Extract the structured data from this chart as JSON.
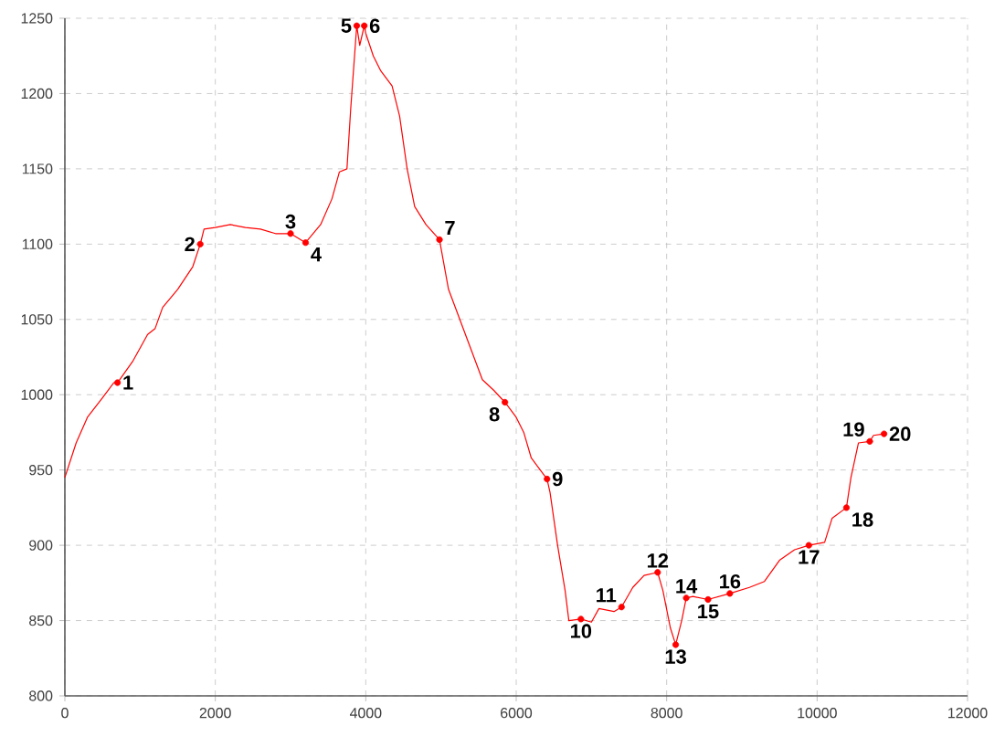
{
  "chart_data": {
    "type": "line",
    "xlim": [
      0,
      12000
    ],
    "ylim": [
      800,
      1250
    ],
    "xticks": [
      0,
      2000,
      4000,
      6000,
      8000,
      10000,
      12000
    ],
    "yticks": [
      800,
      850,
      900,
      950,
      1000,
      1050,
      1100,
      1150,
      1200,
      1250
    ],
    "grid": true,
    "series": [
      {
        "color": "#ff0000",
        "marker": "none",
        "line_style": "solid",
        "x": [
          0,
          150,
          300,
          500,
          650,
          700,
          900,
          1100,
          1200,
          1300,
          1500,
          1700,
          1800,
          1850,
          2000,
          2200,
          2400,
          2600,
          2800,
          3000,
          3200,
          3400,
          3550,
          3650,
          3750,
          3800,
          3880,
          3920,
          3980,
          4000,
          4100,
          4200,
          4350,
          4450,
          4550,
          4650,
          4800,
          4980,
          5100,
          5250,
          5400,
          5550,
          5700,
          5850,
          6000,
          6100,
          6200,
          6410,
          6450,
          6550,
          6650,
          6700,
          6860,
          7000,
          7100,
          7300,
          7400,
          7550,
          7700,
          7880,
          7950,
          8050,
          8120,
          8200,
          8260,
          8350,
          8550,
          8840,
          9100,
          9300,
          9500,
          9700,
          9890,
          10100,
          10200,
          10390,
          10450,
          10550,
          10700,
          10750,
          10890
        ],
        "values": [
          945,
          968,
          985,
          998,
          1008,
          1008,
          1022,
          1040,
          1044,
          1058,
          1070,
          1085,
          1100,
          1110,
          1111,
          1113,
          1111,
          1110,
          1107,
          1107,
          1101,
          1113,
          1130,
          1148,
          1150,
          1190,
          1245,
          1232,
          1245,
          1240,
          1225,
          1215,
          1205,
          1185,
          1150,
          1125,
          1113,
          1103,
          1070,
          1050,
          1030,
          1010,
          1003,
          995,
          985,
          975,
          958,
          944,
          935,
          900,
          870,
          850,
          851,
          849,
          858,
          856,
          859,
          872,
          880,
          882,
          870,
          845,
          834,
          850,
          865,
          866,
          864,
          868,
          872,
          876,
          890,
          897,
          900,
          902,
          918,
          925,
          945,
          968,
          969,
          973,
          974
        ]
      },
      {
        "type": "scatter",
        "color": "#ff0000",
        "marker": "circle",
        "x": [
          700,
          1800,
          3000,
          3200,
          3880,
          3980,
          4980,
          5850,
          6410,
          6860,
          7400,
          7880,
          8120,
          8260,
          8550,
          8840,
          9890,
          10390,
          10700,
          10890
        ],
        "values": [
          1008,
          1100,
          1107,
          1101,
          1245,
          1245,
          1103,
          995,
          944,
          851,
          859,
          882,
          834,
          865,
          864,
          868,
          900,
          925,
          969,
          974
        ]
      }
    ],
    "annotations": [
      {
        "text": "1",
        "x": 700,
        "y": 1008
      },
      {
        "text": "2",
        "x": 1800,
        "y": 1100
      },
      {
        "text": "3",
        "x": 3000,
        "y": 1107
      },
      {
        "text": "4",
        "x": 3200,
        "y": 1101
      },
      {
        "text": "5",
        "x": 3880,
        "y": 1245
      },
      {
        "text": "6",
        "x": 3980,
        "y": 1245
      },
      {
        "text": "7",
        "x": 4980,
        "y": 1103
      },
      {
        "text": "8",
        "x": 5850,
        "y": 995
      },
      {
        "text": "9",
        "x": 6410,
        "y": 944
      },
      {
        "text": "10",
        "x": 6860,
        "y": 851
      },
      {
        "text": "11",
        "x": 7400,
        "y": 859
      },
      {
        "text": "12",
        "x": 7880,
        "y": 882
      },
      {
        "text": "13",
        "x": 8120,
        "y": 834
      },
      {
        "text": "14",
        "x": 8260,
        "y": 865
      },
      {
        "text": "15",
        "x": 8550,
        "y": 864
      },
      {
        "text": "16",
        "x": 8840,
        "y": 868
      },
      {
        "text": "17",
        "x": 9890,
        "y": 900
      },
      {
        "text": "18",
        "x": 10390,
        "y": 925
      },
      {
        "text": "19",
        "x": 10700,
        "y": 969
      },
      {
        "text": "20",
        "x": 10890,
        "y": 974
      }
    ]
  }
}
